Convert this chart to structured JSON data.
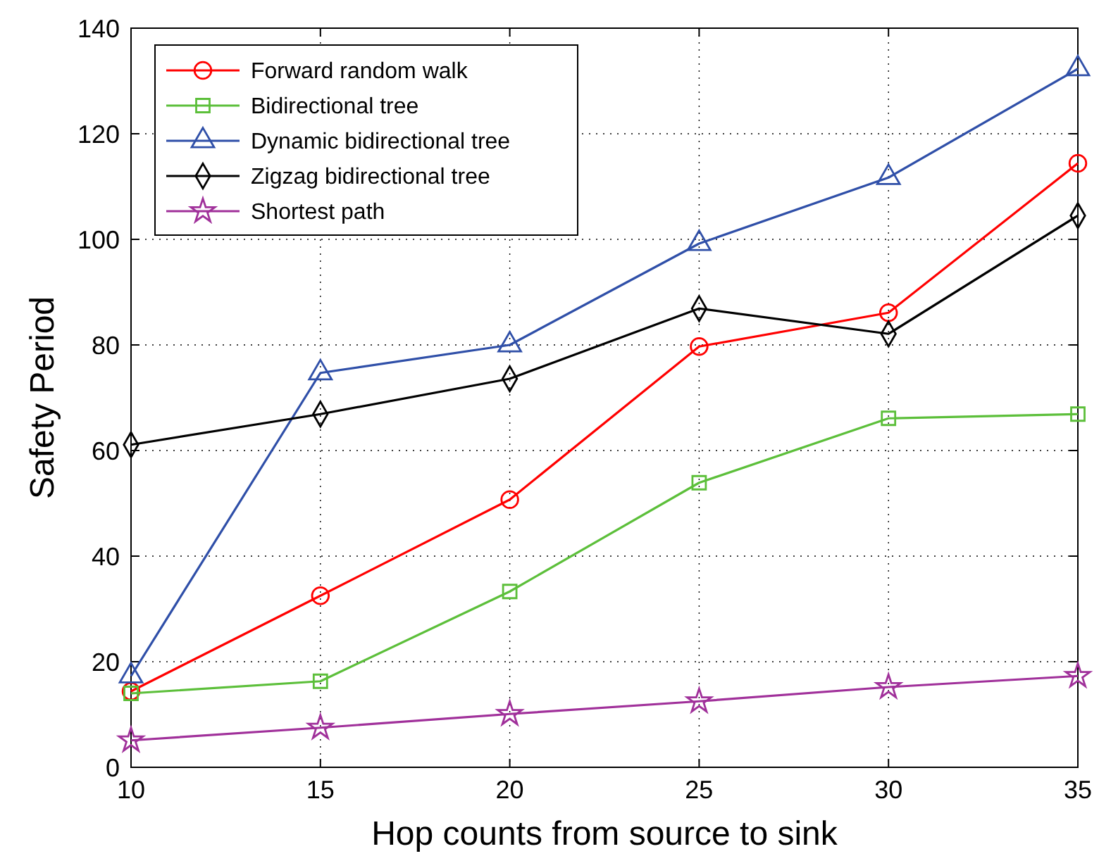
{
  "chart_data": {
    "type": "line",
    "xlabel": "Hop counts from source to sink",
    "ylabel": "Safety Period",
    "x": [
      10,
      15,
      20,
      25,
      30,
      35
    ],
    "xlim": [
      10,
      35
    ],
    "xticks": [
      10,
      15,
      20,
      25,
      30,
      35
    ],
    "ylim": [
      0,
      140
    ],
    "yticks": [
      0,
      20,
      40,
      60,
      80,
      100,
      120,
      140
    ],
    "grid": true,
    "legend": "top left",
    "line_style": "solid",
    "series": [
      {
        "name": "Forward random walk",
        "color": "#ff0000",
        "marker": "circle",
        "values": [
          14.4,
          32.5,
          50.7,
          79.7,
          86.1,
          114.4
        ]
      },
      {
        "name": "Bidirectional tree",
        "color": "#5cbf3a",
        "marker": "square",
        "values": [
          14,
          16.3,
          33.3,
          53.9,
          66.1,
          66.9
        ]
      },
      {
        "name": "Dynamic bidirectional tree",
        "color": "#2f4fa8",
        "marker": "triangle",
        "values": [
          17.3,
          74.7,
          80,
          99.2,
          111.7,
          132.3
        ]
      },
      {
        "name": "Zigzag bidirectional tree",
        "color": "#000000",
        "marker": "diamond",
        "values": [
          61.1,
          66.9,
          73.6,
          86.9,
          82.1,
          104.5
        ]
      },
      {
        "name": "Shortest path",
        "color": "#a0309a",
        "marker": "star",
        "values": [
          5.1,
          7.5,
          10.1,
          12.5,
          15.2,
          17.3
        ]
      }
    ]
  }
}
